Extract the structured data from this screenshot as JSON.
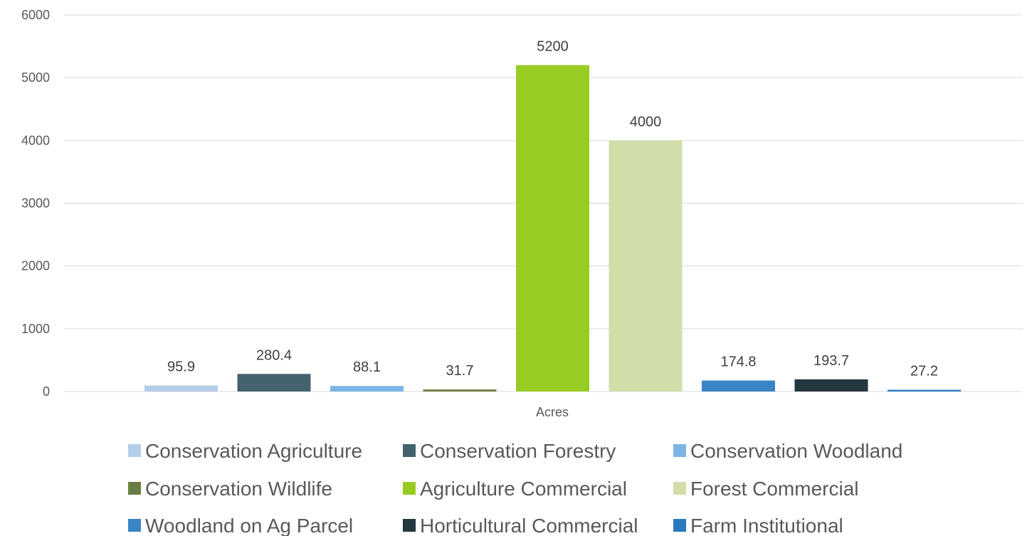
{
  "chart_data": {
    "type": "bar",
    "xlabel": "Acres",
    "ylabel": "",
    "title": "",
    "ylim": [
      0,
      6000
    ],
    "yticks": [
      0,
      1000,
      2000,
      3000,
      4000,
      5000,
      6000
    ],
    "grid": true,
    "legend_position": "bottom",
    "series": [
      {
        "name": "Conservation Agriculture",
        "value": 95.9,
        "label": "95.9",
        "color": "#b4cde8"
      },
      {
        "name": "Conservation Forestry",
        "value": 280.4,
        "label": "280.4",
        "color": "#45636e"
      },
      {
        "name": "Conservation Woodland",
        "value": 88.1,
        "label": "88.1",
        "color": "#7db6e6"
      },
      {
        "name": "Conservation Wildlife",
        "value": 31.7,
        "label": "31.7",
        "color": "#6a7e43"
      },
      {
        "name": "Agriculture Commercial",
        "value": 5200,
        "label": "5200",
        "color": "#99cc22"
      },
      {
        "name": "Forest Commercial",
        "value": 4000,
        "label": "4000",
        "color": "#d1dea9"
      },
      {
        "name": "Woodland on Ag Parcel",
        "value": 174.8,
        "label": "174.8",
        "color": "#3a85c6"
      },
      {
        "name": "Horticultural Commercial",
        "value": 193.7,
        "label": "193.7",
        "color": "#25373f"
      },
      {
        "name": "Farm Institutional",
        "value": 27.2,
        "label": "27.2",
        "color": "#2a7ac0"
      }
    ]
  }
}
